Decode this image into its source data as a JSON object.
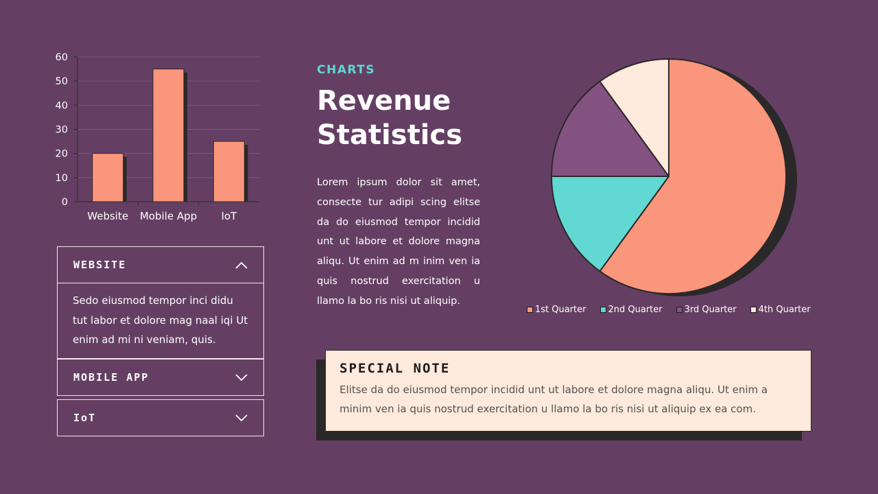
{
  "bar": {
    "chart_data": {
      "type": "bar",
      "categories": [
        "Website",
        "Mobile App",
        "IoT"
      ],
      "values": [
        20,
        55,
        25
      ],
      "ylim": [
        0,
        60
      ],
      "yticks": [
        0,
        10,
        20,
        30,
        40,
        50,
        60
      ],
      "grid": true,
      "bar_color": "#f9967b"
    }
  },
  "accordion": [
    {
      "title": "WEBSITE",
      "open": true,
      "body": "Sedo eiusmod tempor inci didu tut labor et dolore mag naal iqi Ut enim ad mi ni veniam, quis."
    },
    {
      "title": "MOBILE APP",
      "open": false
    },
    {
      "title": "IoT",
      "open": false
    }
  ],
  "header": {
    "kicker": "CHARTS",
    "title": "Revenue Statistics",
    "body": "Lorem ipsum dolor sit amet, consecte tur adipi scing elitse da do eiusmod tempor incidid unt ut labore et dolore magna aliqu. Ut enim ad m inim ven ia quis nostrud exercitation u llamo la bo ris nisi ut aliquip."
  },
  "pie": {
    "chart_data": {
      "type": "pie",
      "categories": [
        "1st Quarter",
        "2nd Quarter",
        "3rd Quarter",
        "4th Quarter"
      ],
      "values": [
        60,
        15,
        15,
        10
      ],
      "colors": [
        "#f9967b",
        "#62d8d2",
        "#835281",
        "#feeadc"
      ],
      "legend": "bottom"
    }
  },
  "note": {
    "title": "SPECIAL NOTE",
    "text": "Elitse da do eiusmod tempor incidid unt ut labore et dolore magna aliqu. Ut enim a minim ven ia  quis nostrud exercitation u llamo la bo ris nisi ut aliquip ex ea com."
  },
  "colors": {
    "background": "#643f63",
    "accent": "#5ed8d2",
    "shadow": "#2b2829",
    "note_bg": "#feeadc"
  }
}
